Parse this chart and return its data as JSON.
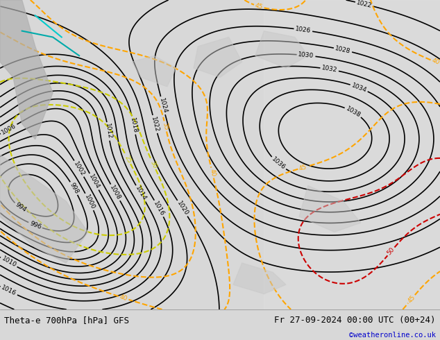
{
  "title_left": "Theta-e 700hPa [hPa] GFS",
  "title_right": "Fr 27-09-2024 00:00 UTC (00+24)",
  "credit": "©weatheronline.co.uk",
  "bg_color": "#d8d8d8",
  "map_bg_color": "#c8e6a0",
  "figure_width": 6.34,
  "figure_height": 4.9,
  "bottom_bar_color": "#ffffff",
  "title_fontsize": 9,
  "credit_color": "#0000cc"
}
